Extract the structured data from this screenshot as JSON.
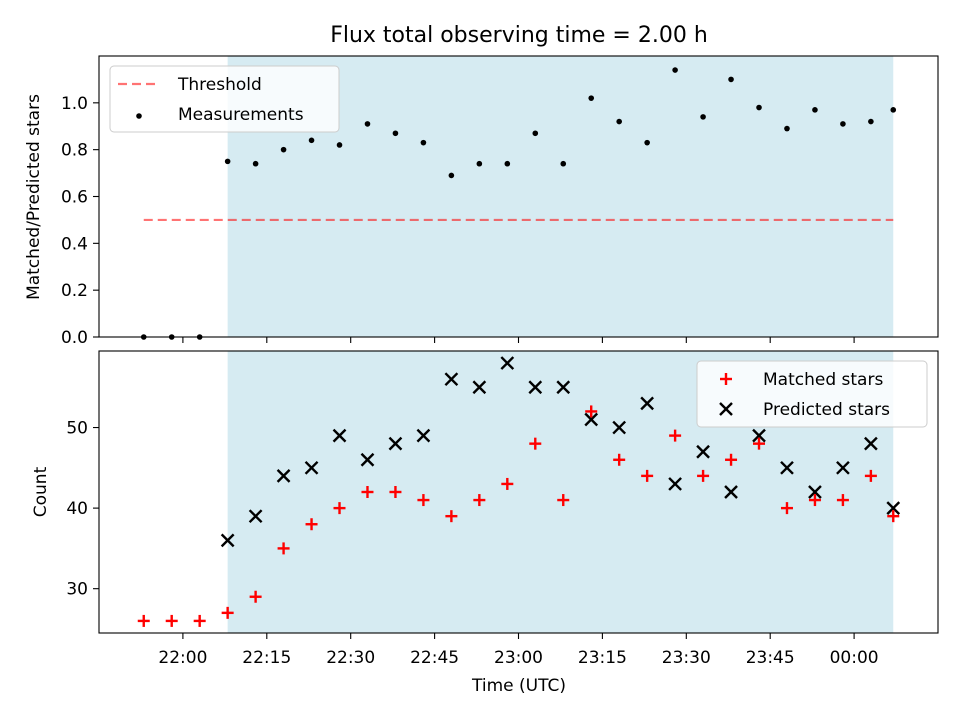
{
  "title": "Flux total observing time = 2.00 h",
  "colors": {
    "observing_span": "#add8e6",
    "threshold": "#ff0000",
    "measurements": "#000000",
    "matched": "#ff0000",
    "predicted": "#000000"
  },
  "chart_data": [
    {
      "type": "scatter",
      "panel": "top",
      "ylabel": "Matched/Predicted stars",
      "ylim": [
        0,
        1.2
      ],
      "yticks": [
        "0.0",
        "0.2",
        "0.4",
        "0.6",
        "0.8",
        "1.0"
      ],
      "x_range": [
        "21:45",
        "00:15"
      ],
      "observing_span": [
        "22:08",
        "00:07"
      ],
      "threshold": {
        "name": "Threshold",
        "value": 0.5,
        "from": "21:53",
        "to": "00:07"
      },
      "legend": "upper-left",
      "series": [
        {
          "name": "Measurements",
          "x": [
            "21:53",
            "21:58",
            "22:03",
            "22:08",
            "22:13",
            "22:18",
            "22:23",
            "22:28",
            "22:33",
            "22:38",
            "22:43",
            "22:48",
            "22:53",
            "22:58",
            "23:03",
            "23:08",
            "23:13",
            "23:18",
            "23:23",
            "23:28",
            "23:33",
            "23:38",
            "23:43",
            "23:48",
            "23:53",
            "23:58",
            "00:03",
            "00:07"
          ],
          "y": [
            0.0,
            0.0,
            0.0,
            0.75,
            0.74,
            0.8,
            0.84,
            0.82,
            0.91,
            0.87,
            0.83,
            0.69,
            0.74,
            0.74,
            0.87,
            0.74,
            1.02,
            0.92,
            0.83,
            1.14,
            0.94,
            1.1,
            0.98,
            0.89,
            0.97,
            0.91,
            0.92,
            0.97
          ]
        }
      ]
    },
    {
      "type": "scatter",
      "panel": "bottom",
      "ylabel": "Count",
      "xlabel": "Time (UTC)",
      "ylim": [
        24.5,
        59.5
      ],
      "yticks": [
        "30",
        "40",
        "50"
      ],
      "xticks": [
        "22:00",
        "22:15",
        "22:30",
        "22:45",
        "23:00",
        "23:15",
        "23:30",
        "23:45",
        "00:00"
      ],
      "x_range": [
        "21:45",
        "00:15"
      ],
      "observing_span": [
        "22:08",
        "00:07"
      ],
      "legend": "upper-right",
      "series": [
        {
          "name": "Matched stars",
          "x": [
            "21:53",
            "21:58",
            "22:03",
            "22:08",
            "22:13",
            "22:18",
            "22:23",
            "22:28",
            "22:33",
            "22:38",
            "22:43",
            "22:48",
            "22:53",
            "22:58",
            "23:03",
            "23:08",
            "23:13",
            "23:18",
            "23:23",
            "23:28",
            "23:33",
            "23:38",
            "23:43",
            "23:48",
            "23:53",
            "23:58",
            "00:03",
            "00:07"
          ],
          "y": [
            26,
            26,
            26,
            27,
            29,
            35,
            38,
            40,
            42,
            42,
            41,
            39,
            41,
            43,
            48,
            41,
            52,
            46,
            44,
            49,
            44,
            46,
            48,
            40,
            41,
            41,
            44,
            39
          ]
        },
        {
          "name": "Predicted stars",
          "x": [
            "22:08",
            "22:13",
            "22:18",
            "22:23",
            "22:28",
            "22:33",
            "22:38",
            "22:43",
            "22:48",
            "22:53",
            "22:58",
            "23:03",
            "23:08",
            "23:13",
            "23:18",
            "23:23",
            "23:28",
            "23:33",
            "23:38",
            "23:43",
            "23:48",
            "23:53",
            "23:58",
            "00:03",
            "00:07"
          ],
          "y": [
            36,
            39,
            44,
            45,
            49,
            46,
            48,
            49,
            56,
            55,
            58,
            55,
            55,
            51,
            50,
            53,
            43,
            47,
            42,
            49,
            45,
            42,
            45,
            48,
            40
          ]
        }
      ]
    }
  ]
}
